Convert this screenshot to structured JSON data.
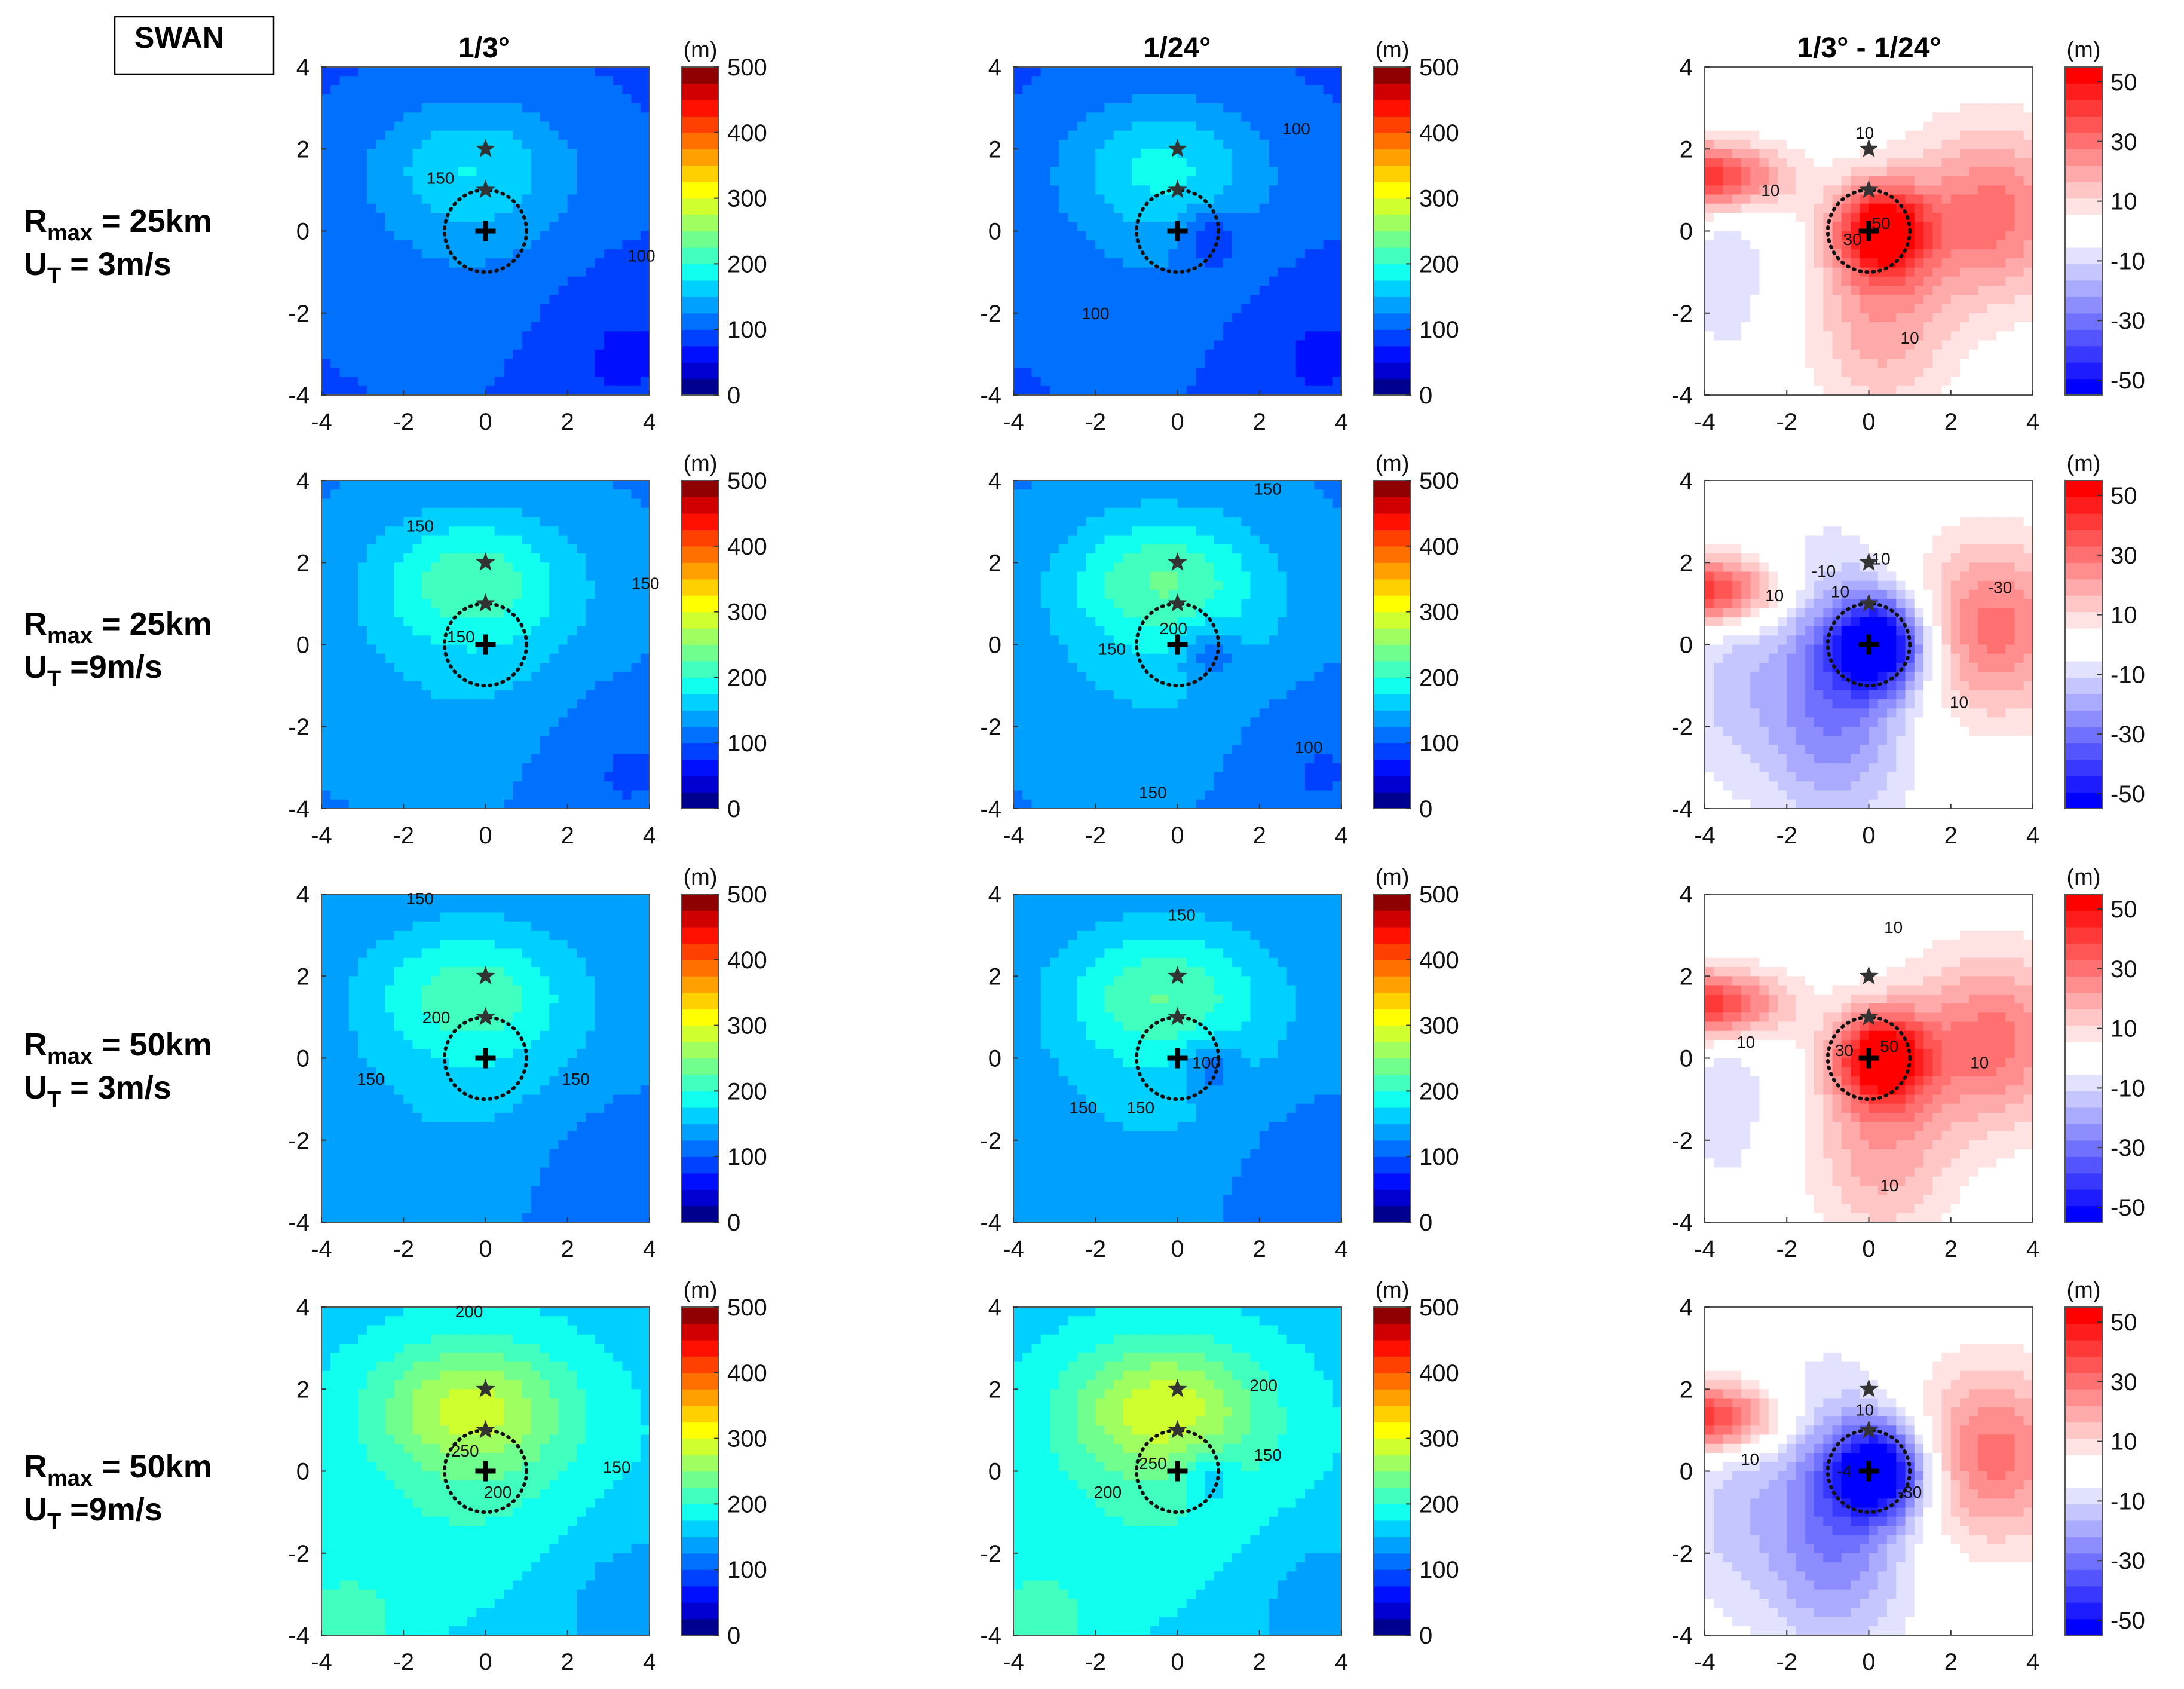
{
  "figure": {
    "model_label": "SWAN",
    "unit_label": "(m)",
    "column_titles": [
      "1/3°",
      "1/24°",
      "1/3° - 1/24°"
    ],
    "row_labels": [
      {
        "r": "R",
        "r_sub": "max",
        "r_val": " = 25km",
        "u": "U",
        "u_sub": "T",
        "u_val": " = 3m/s"
      },
      {
        "r": "R",
        "r_sub": "max",
        "r_val": " = 25km",
        "u": "U",
        "u_sub": "T",
        "u_val": " =9m/s"
      },
      {
        "r": "R",
        "r_sub": "max",
        "r_val": " = 50km",
        "u": "U",
        "u_sub": "T",
        "u_val": " = 3m/s"
      },
      {
        "r": "R",
        "r_sub": "max",
        "r_val": " = 50km",
        "u": "U",
        "u_sub": "T",
        "u_val": " =9m/s"
      }
    ]
  },
  "chart_data": [
    {
      "type": "heatmap",
      "panel": "r1c1",
      "title": "1/3°",
      "row": "Rmax = 25km, UT = 3m/s",
      "xlim": [
        -4,
        4
      ],
      "ylim": [
        -4,
        4
      ],
      "xticks": [
        -4,
        -2,
        0,
        2,
        4
      ],
      "yticks": [
        -4,
        -2,
        0,
        2,
        4
      ],
      "colorbar": {
        "range": [
          0,
          500
        ],
        "ticks": [
          0,
          100,
          200,
          300,
          400,
          500
        ]
      },
      "contour_labels": [
        {
          "text": "150",
          "x": -1.1,
          "y": 1.3
        },
        {
          "text": "100",
          "x": 3.8,
          "y": -0.6
        }
      ],
      "markers": {
        "stars": [
          [
            0,
            2
          ],
          [
            0,
            1
          ]
        ],
        "plus": [
          0,
          0
        ],
        "circle_radius": 1
      }
    },
    {
      "type": "heatmap",
      "panel": "r1c2",
      "title": "1/24°",
      "row": "Rmax = 25km, UT = 3m/s",
      "xlim": [
        -4,
        4
      ],
      "ylim": [
        -4,
        4
      ],
      "xticks": [
        -4,
        -2,
        0,
        2,
        4
      ],
      "yticks": [
        -4,
        -2,
        0,
        2,
        4
      ],
      "colorbar": {
        "range": [
          0,
          500
        ],
        "ticks": [
          0,
          100,
          200,
          300,
          400,
          500
        ]
      },
      "contour_labels": [
        {
          "text": "100",
          "x": 2.9,
          "y": 2.5
        },
        {
          "text": "100",
          "x": -2,
          "y": -2
        }
      ],
      "markers": {
        "stars": [
          [
            0,
            2
          ],
          [
            0,
            1
          ]
        ],
        "plus": [
          0,
          0
        ],
        "circle_radius": 1
      }
    },
    {
      "type": "heatmap",
      "panel": "r1c3",
      "title": "1/3° - 1/24°",
      "row": "Rmax = 25km, UT = 3m/s",
      "xlim": [
        -4,
        4
      ],
      "ylim": [
        -4,
        4
      ],
      "xticks": [
        -4,
        -2,
        0,
        2,
        4
      ],
      "yticks": [
        -4,
        -2,
        0,
        2,
        4
      ],
      "colorbar": {
        "range": [
          -55,
          55
        ],
        "ticks": [
          -50,
          -30,
          -10,
          10,
          30,
          50
        ]
      },
      "contour_labels": [
        {
          "text": "10",
          "x": -2.4,
          "y": 1
        },
        {
          "text": "10",
          "x": -0.1,
          "y": 2.4
        },
        {
          "text": "30",
          "x": -0.4,
          "y": -0.2
        },
        {
          "text": "50",
          "x": 0.3,
          "y": 0.2
        },
        {
          "text": "10",
          "x": 1,
          "y": -2.6
        }
      ],
      "markers": {
        "stars": [
          [
            0,
            2
          ],
          [
            0,
            1
          ]
        ],
        "plus": [
          0,
          0
        ],
        "circle_radius": 1
      }
    },
    {
      "type": "heatmap",
      "panel": "r2c1",
      "title": "1/3°",
      "row": "Rmax = 25km, UT = 9m/s",
      "xlim": [
        -4,
        4
      ],
      "ylim": [
        -4,
        4
      ],
      "xticks": [
        -4,
        -2,
        0,
        2,
        4
      ],
      "yticks": [
        -4,
        -2,
        0,
        2,
        4
      ],
      "colorbar": {
        "range": [
          0,
          500
        ],
        "ticks": [
          0,
          100,
          200,
          300,
          400,
          500
        ]
      },
      "contour_labels": [
        {
          "text": "150",
          "x": -1.6,
          "y": 2.9
        },
        {
          "text": "150",
          "x": 3.9,
          "y": 1.5
        },
        {
          "text": "150",
          "x": -0.6,
          "y": 0.2
        }
      ],
      "markers": {
        "stars": [
          [
            0,
            2
          ],
          [
            0,
            1
          ]
        ],
        "plus": [
          0,
          0
        ],
        "circle_radius": 1
      }
    },
    {
      "type": "heatmap",
      "panel": "r2c2",
      "title": "1/24°",
      "row": "Rmax = 25km, UT = 9m/s",
      "xlim": [
        -4,
        4
      ],
      "ylim": [
        -4,
        4
      ],
      "xticks": [
        -4,
        -2,
        0,
        2,
        4
      ],
      "yticks": [
        -4,
        -2,
        0,
        2,
        4
      ],
      "colorbar": {
        "range": [
          0,
          500
        ],
        "ticks": [
          0,
          100,
          200,
          300,
          400,
          500
        ]
      },
      "contour_labels": [
        {
          "text": "150",
          "x": 2.2,
          "y": 3.8
        },
        {
          "text": "200",
          "x": -0.1,
          "y": 0.4
        },
        {
          "text": "150",
          "x": -1.6,
          "y": -0.1
        },
        {
          "text": "100",
          "x": 3.2,
          "y": -2.5
        },
        {
          "text": "150",
          "x": -0.6,
          "y": -3.6
        }
      ],
      "markers": {
        "stars": [
          [
            0,
            2
          ],
          [
            0,
            1
          ]
        ],
        "plus": [
          0,
          0
        ],
        "circle_radius": 1
      }
    },
    {
      "type": "heatmap",
      "panel": "r2c3",
      "title": "1/3° - 1/24°",
      "row": "Rmax = 25km, UT = 9m/s",
      "xlim": [
        -4,
        4
      ],
      "ylim": [
        -4,
        4
      ],
      "xticks": [
        -4,
        -2,
        0,
        2,
        4
      ],
      "yticks": [
        -4,
        -2,
        0,
        2,
        4
      ],
      "colorbar": {
        "range": [
          -55,
          55
        ],
        "ticks": [
          -50,
          -30,
          -10,
          10,
          30,
          50
        ]
      },
      "contour_labels": [
        {
          "text": "10",
          "x": -2.3,
          "y": 1.2
        },
        {
          "text": "-10",
          "x": -1.1,
          "y": 1.8
        },
        {
          "text": "10",
          "x": -0.7,
          "y": 1.3
        },
        {
          "text": "10",
          "x": 0.3,
          "y": 2.1
        },
        {
          "text": "-30",
          "x": 3.2,
          "y": 1.4
        },
        {
          "text": "10",
          "x": 2.2,
          "y": -1.4
        }
      ],
      "markers": {
        "stars": [
          [
            0,
            2
          ],
          [
            0,
            1
          ]
        ],
        "plus": [
          0,
          0
        ],
        "circle_radius": 1
      }
    },
    {
      "type": "heatmap",
      "panel": "r3c1",
      "title": "1/3°",
      "row": "Rmax = 50km, UT = 3m/s",
      "xlim": [
        -4,
        4
      ],
      "ylim": [
        -4,
        4
      ],
      "xticks": [
        -4,
        -2,
        0,
        2,
        4
      ],
      "yticks": [
        -4,
        -2,
        0,
        2,
        4
      ],
      "colorbar": {
        "range": [
          0,
          500
        ],
        "ticks": [
          0,
          100,
          200,
          300,
          400,
          500
        ]
      },
      "contour_labels": [
        {
          "text": "150",
          "x": -1.6,
          "y": 3.9
        },
        {
          "text": "200",
          "x": -1.2,
          "y": 1
        },
        {
          "text": "150",
          "x": -2.8,
          "y": -0.5
        },
        {
          "text": "150",
          "x": 2.2,
          "y": -0.5
        }
      ],
      "markers": {
        "stars": [
          [
            0,
            2
          ],
          [
            0,
            1
          ]
        ],
        "plus": [
          0,
          0
        ],
        "circle_radius": 1
      }
    },
    {
      "type": "heatmap",
      "panel": "r3c2",
      "title": "1/24°",
      "row": "Rmax = 50km, UT = 3m/s",
      "xlim": [
        -4,
        4
      ],
      "ylim": [
        -4,
        4
      ],
      "xticks": [
        -4,
        -2,
        0,
        2,
        4
      ],
      "yticks": [
        -4,
        -2,
        0,
        2,
        4
      ],
      "colorbar": {
        "range": [
          0,
          500
        ],
        "ticks": [
          0,
          100,
          200,
          300,
          400,
          500
        ]
      },
      "contour_labels": [
        {
          "text": "150",
          "x": 0.1,
          "y": 3.5
        },
        {
          "text": "100",
          "x": 0.7,
          "y": -0.1
        },
        {
          "text": "150",
          "x": -2.3,
          "y": -1.2
        },
        {
          "text": "150",
          "x": -0.9,
          "y": -1.2
        }
      ],
      "markers": {
        "stars": [
          [
            0,
            2
          ],
          [
            0,
            1
          ]
        ],
        "plus": [
          0,
          0
        ],
        "circle_radius": 1
      }
    },
    {
      "type": "heatmap",
      "panel": "r3c3",
      "title": "1/3° - 1/24°",
      "row": "Rmax = 50km, UT = 3m/s",
      "xlim": [
        -4,
        4
      ],
      "ylim": [
        -4,
        4
      ],
      "xticks": [
        -4,
        -2,
        0,
        2,
        4
      ],
      "yticks": [
        -4,
        -2,
        0,
        2,
        4
      ],
      "colorbar": {
        "range": [
          -55,
          55
        ],
        "ticks": [
          -50,
          -30,
          -10,
          10,
          30,
          50
        ]
      },
      "contour_labels": [
        {
          "text": "10",
          "x": 0.6,
          "y": 3.2
        },
        {
          "text": "10",
          "x": -3,
          "y": 0.4
        },
        {
          "text": "30",
          "x": -0.6,
          "y": 0.2
        },
        {
          "text": "50",
          "x": 0.5,
          "y": 0.3
        },
        {
          "text": "10",
          "x": 2.7,
          "y": -0.1
        },
        {
          "text": "10",
          "x": 0.5,
          "y": -3.1
        }
      ],
      "markers": {
        "stars": [
          [
            0,
            2
          ],
          [
            0,
            1
          ]
        ],
        "plus": [
          0,
          0
        ],
        "circle_radius": 1
      }
    },
    {
      "type": "heatmap",
      "panel": "r4c1",
      "title": "1/3°",
      "row": "Rmax = 50km, UT = 9m/s",
      "xlim": [
        -4,
        4
      ],
      "ylim": [
        -4,
        4
      ],
      "xticks": [
        -4,
        -2,
        0,
        2,
        4
      ],
      "yticks": [
        -4,
        -2,
        0,
        2,
        4
      ],
      "colorbar": {
        "range": [
          0,
          500
        ],
        "ticks": [
          0,
          100,
          200,
          300,
          400,
          500
        ]
      },
      "contour_labels": [
        {
          "text": "200",
          "x": -0.4,
          "y": 3.9
        },
        {
          "text": "250",
          "x": -0.5,
          "y": 0.5
        },
        {
          "text": "200",
          "x": 0.3,
          "y": -0.5
        },
        {
          "text": "150",
          "x": 3.2,
          "y": 0.1
        }
      ],
      "markers": {
        "stars": [
          [
            0,
            2
          ],
          [
            0,
            1
          ]
        ],
        "plus": [
          0,
          0
        ],
        "circle_radius": 1
      }
    },
    {
      "type": "heatmap",
      "panel": "r4c2",
      "title": "1/24°",
      "row": "Rmax = 50km, UT = 9m/s",
      "xlim": [
        -4,
        4
      ],
      "ylim": [
        -4,
        4
      ],
      "xticks": [
        -4,
        -2,
        0,
        2,
        4
      ],
      "yticks": [
        -4,
        -2,
        0,
        2,
        4
      ],
      "colorbar": {
        "range": [
          0,
          500
        ],
        "ticks": [
          0,
          100,
          200,
          300,
          400,
          500
        ]
      },
      "contour_labels": [
        {
          "text": "200",
          "x": 2.1,
          "y": 2.1
        },
        {
          "text": "150",
          "x": 2.2,
          "y": 0.4
        },
        {
          "text": "250",
          "x": -0.6,
          "y": 0.2
        },
        {
          "text": "200",
          "x": -1.7,
          "y": -0.5
        }
      ],
      "markers": {
        "stars": [
          [
            0,
            2
          ],
          [
            0,
            1
          ]
        ],
        "plus": [
          0,
          0
        ],
        "circle_radius": 1
      }
    },
    {
      "type": "heatmap",
      "panel": "r4c3",
      "title": "1/3° - 1/24°",
      "row": "Rmax = 50km, UT = 9m/s",
      "xlim": [
        -4,
        4
      ],
      "ylim": [
        -4,
        4
      ],
      "xticks": [
        -4,
        -2,
        0,
        2,
        4
      ],
      "yticks": [
        -4,
        -2,
        0,
        2,
        4
      ],
      "colorbar": {
        "range": [
          -55,
          55
        ],
        "ticks": [
          -50,
          -30,
          -10,
          10,
          30,
          50
        ]
      },
      "contour_labels": [
        {
          "text": "10",
          "x": -2.9,
          "y": 0.3
        },
        {
          "text": "10",
          "x": -0.1,
          "y": 1.5
        },
        {
          "text": "-30",
          "x": 1,
          "y": -0.5
        },
        {
          "text": "-4",
          "x": -0.6,
          "y": 0
        }
      ],
      "markers": {
        "stars": [
          [
            0,
            2
          ],
          [
            0,
            1
          ]
        ],
        "plus": [
          0,
          0
        ],
        "circle_radius": 1
      }
    }
  ],
  "colors": {
    "jet": [
      "#00008f",
      "#0000d0",
      "#0010ff",
      "#0040ff",
      "#0070ff",
      "#00a0ff",
      "#00d0ff",
      "#10ffef",
      "#40ffbf",
      "#70ff8f",
      "#a0ff60",
      "#d0ff30",
      "#ffff00",
      "#ffd000",
      "#ffa000",
      "#ff7000",
      "#ff4000",
      "#ff1000",
      "#d00000",
      "#8f0000"
    ],
    "diff": [
      "#0000ff",
      "#1c1cff",
      "#3838ff",
      "#5555ff",
      "#7171ff",
      "#8d8dff",
      "#aaaaff",
      "#c6c6ff",
      "#e2e2ff",
      "#ffffff",
      "#ffffff",
      "#ffe2e2",
      "#ffc6c6",
      "#ffaaaa",
      "#ff8d8d",
      "#ff7171",
      "#ff5555",
      "#ff3838",
      "#ff1c1c",
      "#ff0000"
    ]
  }
}
